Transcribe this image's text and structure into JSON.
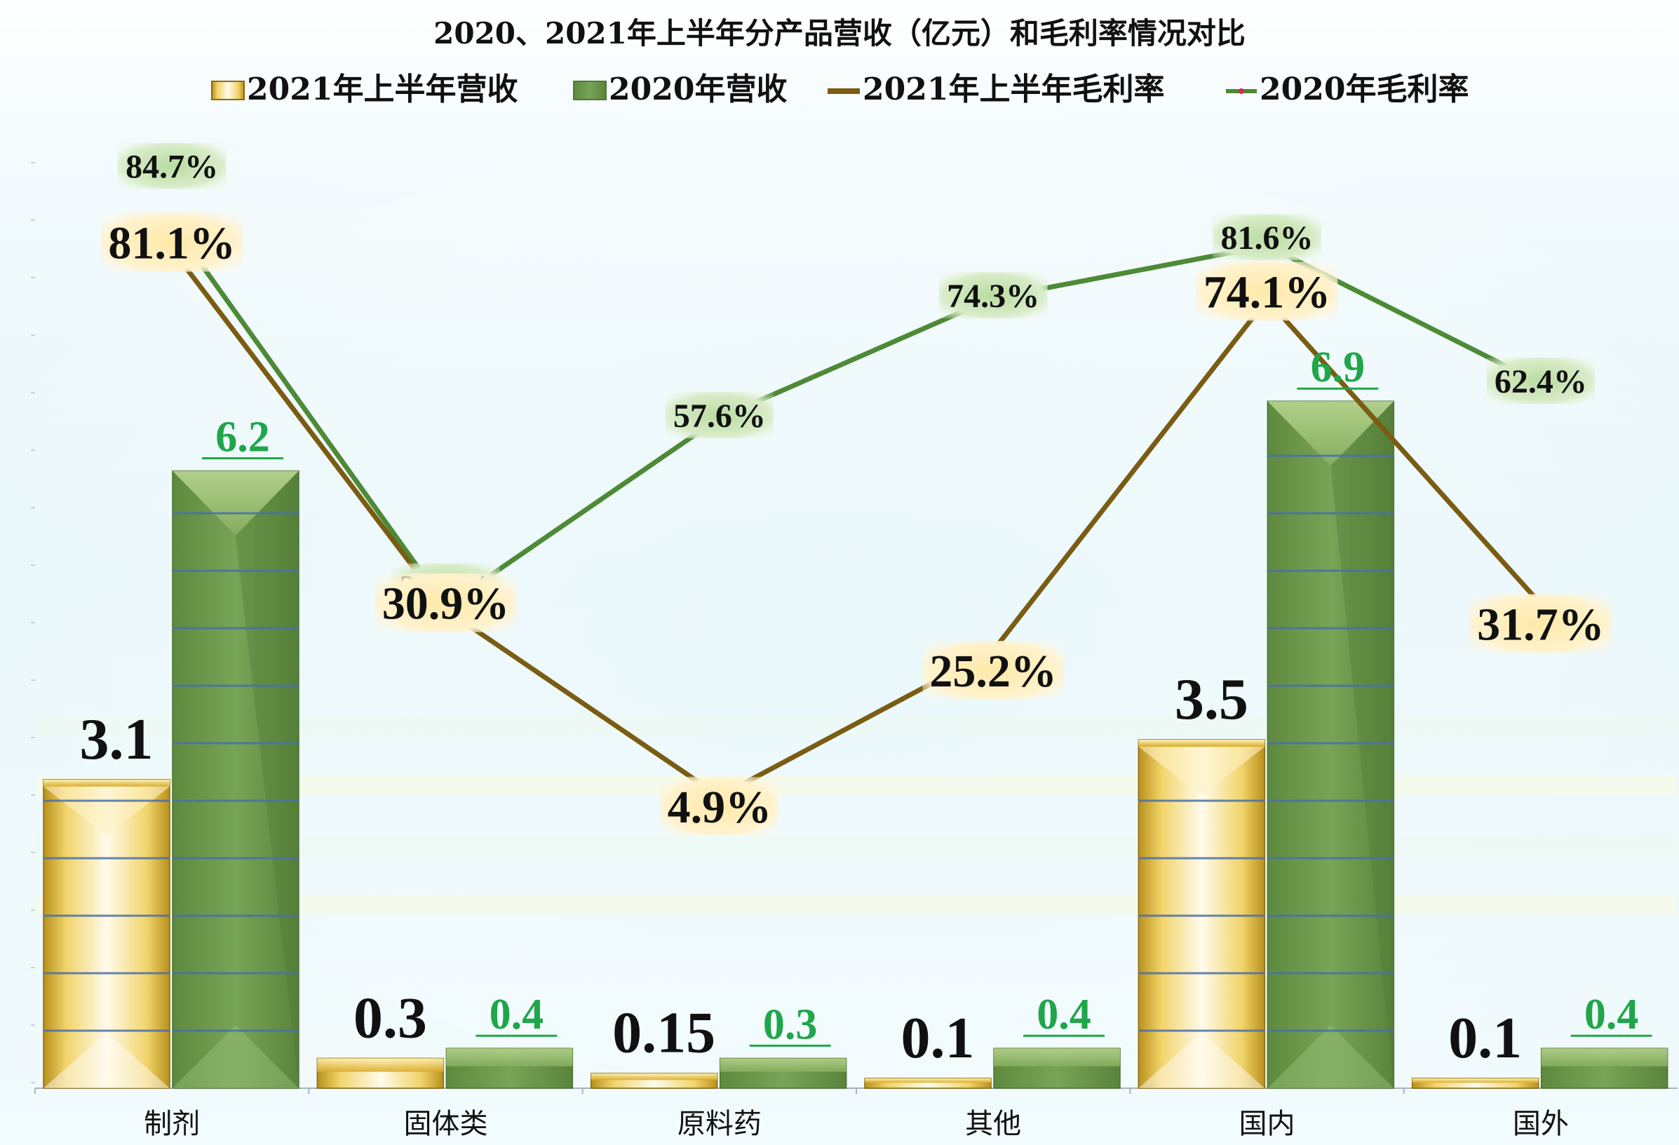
{
  "chart_data": {
    "type": "bar",
    "title": "2020、2021年上半年分产品营收（亿元）和毛利率情况对比",
    "categories": [
      "制剂",
      "固体类",
      "原料药",
      "其他",
      "国内",
      "国外"
    ],
    "series": [
      {
        "name": "2021年上半年营收",
        "kind": "bar",
        "values": [
          3.1,
          0.3,
          0.15,
          0.1,
          3.5,
          0.1
        ],
        "labels": [
          "3.1",
          "0.3",
          "0.15",
          "0.1",
          "3.5",
          "0.1"
        ],
        "color": "#e8c24a"
      },
      {
        "name": "2020年营收",
        "kind": "bar",
        "values": [
          6.2,
          0.4,
          0.3,
          0.4,
          6.9,
          0.4
        ],
        "labels": [
          "6.2",
          "0.4",
          "0.3",
          "0.4",
          "6.9",
          "0.4"
        ],
        "color": "#6f9a4e"
      },
      {
        "name": "2021年上半年毛利率",
        "kind": "line",
        "values": [
          81.1,
          30.9,
          4.9,
          25.2,
          74.1,
          31.7
        ],
        "labels": [
          "81.1%",
          "30.9%",
          "4.9%",
          "25.2%",
          "74.1%",
          "31.7%"
        ],
        "color": "#7a5c12"
      },
      {
        "name": "2020年毛利率",
        "kind": "line",
        "values": [
          84.7,
          31.4,
          57.6,
          74.3,
          81.6,
          62.4
        ],
        "labels": [
          "84.7%",
          "31.4%",
          "57.6%",
          "74.3%",
          "81.6%",
          "62.4%"
        ],
        "color": "#4e8a36"
      }
    ],
    "legend_position": "top",
    "grid": false
  }
}
